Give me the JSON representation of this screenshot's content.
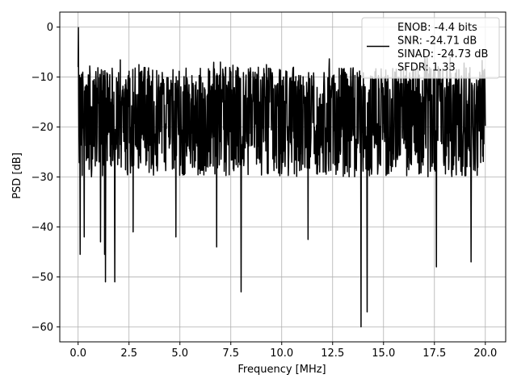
{
  "chart_data": {
    "type": "line",
    "xlabel": "Frequency [MHz]",
    "ylabel": "PSD [dB]",
    "xlim": [
      -0.9,
      21.0
    ],
    "ylim": [
      -63,
      3
    ],
    "x_ticks": [
      0.0,
      2.5,
      5.0,
      7.5,
      10.0,
      12.5,
      15.0,
      17.5,
      20.0
    ],
    "x_tick_labels": [
      "0.0",
      "2.5",
      "5.0",
      "7.5",
      "10.0",
      "12.5",
      "15.0",
      "17.5",
      "20.0"
    ],
    "y_ticks": [
      0,
      -10,
      -20,
      -30,
      -40,
      -50,
      -60
    ],
    "y_tick_labels": [
      "0",
      "−10",
      "−20",
      "−30",
      "−40",
      "−50",
      "−60"
    ],
    "grid": true,
    "legend_position": "upper right",
    "legend_lines": [
      "ENOB: -4.4 bits",
      "SNR: -24.71 dB",
      "SINAD: -24.73 dB",
      "SFDR: 1.33"
    ],
    "series": [
      {
        "color": "#000000",
        "x_start": 0.0,
        "x_end": 20.0,
        "baseline_db": -18,
        "peak_db": -0.1,
        "notable_dips": [
          {
            "x": 0.1,
            "y": -45.5
          },
          {
            "x": 0.3,
            "y": -42
          },
          {
            "x": 1.1,
            "y": -43
          },
          {
            "x": 1.3,
            "y": -45.5
          },
          {
            "x": 1.35,
            "y": -51
          },
          {
            "x": 1.8,
            "y": -51
          },
          {
            "x": 2.7,
            "y": -41
          },
          {
            "x": 4.8,
            "y": -42
          },
          {
            "x": 6.8,
            "y": -44
          },
          {
            "x": 8.0,
            "y": -53
          },
          {
            "x": 11.3,
            "y": -42.5
          },
          {
            "x": 13.9,
            "y": -60
          },
          {
            "x": 14.2,
            "y": -57
          },
          {
            "x": 17.6,
            "y": -48
          },
          {
            "x": 19.3,
            "y": -47
          }
        ]
      }
    ]
  }
}
